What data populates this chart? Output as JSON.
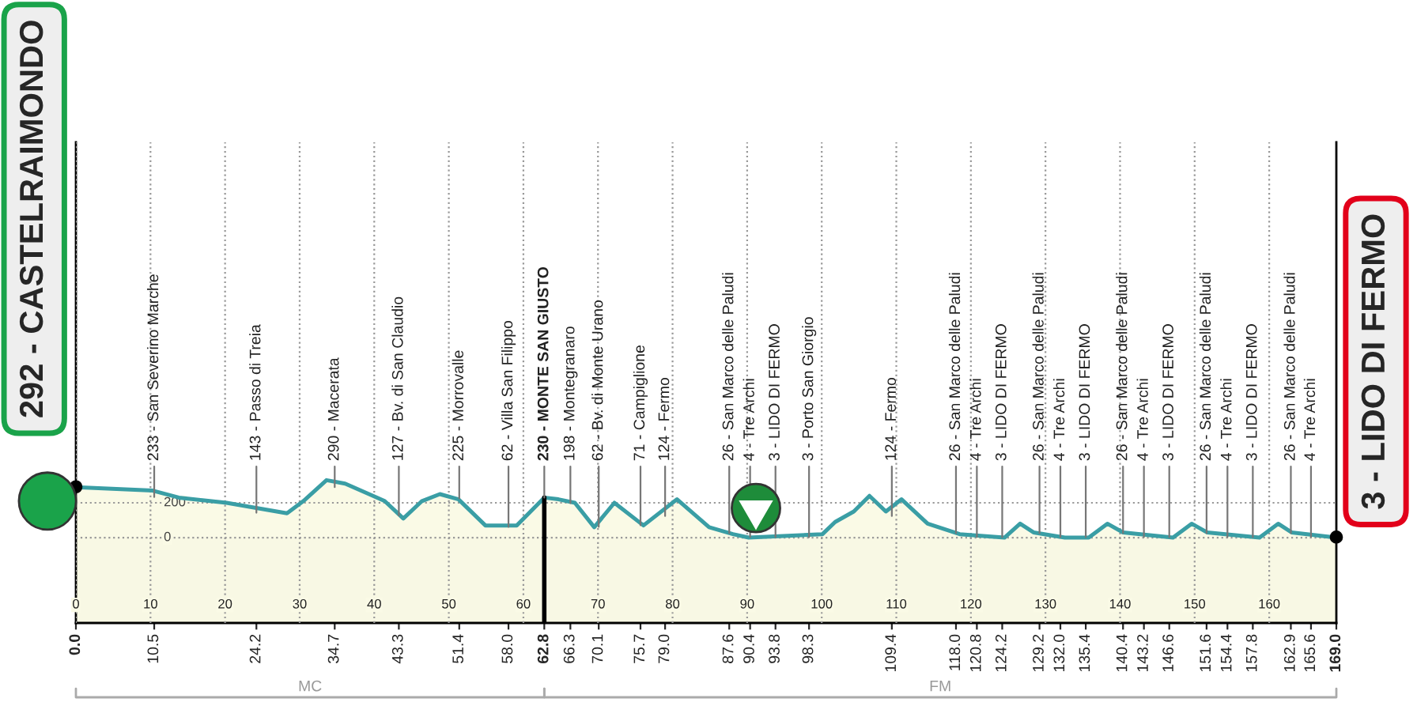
{
  "chart_data": {
    "type": "area",
    "series": [
      {
        "color": "#3a9ea5",
        "x": [
          0,
          10.3,
          13.8,
          20.2,
          28.3,
          30.5,
          33.6,
          36.1,
          39.3,
          41.4,
          43.9,
          46.4,
          48.8,
          51.3,
          54.9,
          59.1,
          62.8,
          64.7,
          66.9,
          69.5,
          72.2,
          76.1,
          80.6,
          84.9,
          88.1,
          90.2,
          100.1,
          101.8,
          104.3,
          106.4,
          108.6,
          110.7,
          114.2,
          118.5,
          124.5,
          126.6,
          128.4,
          132.6,
          135.8,
          138.3,
          140.4,
          147.1,
          149.6,
          151.7,
          158.7,
          161.2,
          163.0,
          169
        ],
        "values": [
          290,
          270,
          230,
          200,
          140,
          210,
          330,
          310,
          250,
          210,
          110,
          210,
          250,
          220,
          70,
          70,
          230,
          220,
          200,
          60,
          200,
          70,
          220,
          60,
          20,
          0,
          20,
          90,
          150,
          240,
          150,
          220,
          80,
          20,
          0,
          80,
          30,
          0,
          0,
          80,
          30,
          0,
          80,
          30,
          0,
          80,
          30,
          0
        ]
      }
    ],
    "xlim": [
      0,
      169
    ],
    "xticks": [
      0,
      10,
      20,
      30,
      40,
      50,
      60,
      70,
      80,
      90,
      100,
      110,
      120,
      130,
      140,
      150,
      160
    ],
    "ylim": [
      -490,
      2270
    ],
    "yticks": [
      0,
      200
    ],
    "x2lim": [
      0,
      169
    ],
    "x2ticks": [
      {
        "value": 0,
        "label": "0.0"
      },
      10.5,
      24.2,
      34.7,
      43.3,
      51.4,
      {
        "value": 58,
        "label": "58.0"
      },
      62.8,
      66.3,
      70.1,
      75.7,
      {
        "value": 79,
        "label": "79.0"
      },
      87.6,
      90.4,
      93.8,
      98.3,
      109.4,
      {
        "value": 118,
        "label": "118.0"
      },
      120.8,
      124.2,
      129.2,
      {
        "value": 132,
        "label": "132.0"
      },
      135.4,
      140.4,
      143.2,
      146.6,
      151.6,
      154.4,
      157.8,
      162.9,
      165.6,
      {
        "value": 169,
        "label": "169.0"
      }
    ],
    "grid": true,
    "ref_lines": [
      {
        "axis": "x",
        "value": 62.8,
        "color": "#000000"
      }
    ],
    "annotations": [
      "MC",
      "FM",
      {
        "text": "292 - CASTELRAIMONDO",
        "x": 0,
        "y": 292
      },
      {
        "text": "3 - LIDO DI FERMO",
        "x": 169,
        "y": 3
      },
      {
        "text": "233 - San Severino Marche",
        "x": 10.5,
        "y": 233
      },
      {
        "text": "143 - Passo di Treia",
        "x": 24.2,
        "y": 143
      },
      {
        "text": "290 - Macerata",
        "x": 34.7,
        "y": 290
      },
      {
        "text": "127 - Bv. di San Claudio",
        "x": 43.3,
        "y": 127
      },
      {
        "text": "225 - Morrovalle",
        "x": 51.4,
        "y": 225
      },
      {
        "text": "62 - Villa San Filippo",
        "x": 58,
        "y": 62
      },
      {
        "text": "230 - MONTE SAN GIUSTO",
        "x": 62.8,
        "y": 230
      },
      {
        "text": "198 - Montegranaro",
        "x": 66.3,
        "y": 198
      },
      {
        "text": "62 - Bv. di Monte Urano",
        "x": 70.1,
        "y": 62
      },
      {
        "text": "71 - Campiglione",
        "x": 75.7,
        "y": 71
      },
      {
        "text": "124 - Fermo",
        "x": 79,
        "y": 124
      },
      {
        "text": "26 - San Marco delle Paludi",
        "x": 87.6,
        "y": 26
      },
      {
        "text": "4 - Tre Archi",
        "x": 90.4,
        "y": 4
      },
      {
        "text": "3 - LIDO DI FERMO",
        "x": 93.8,
        "y": 3
      },
      {
        "text": "3 - Porto San Giorgio",
        "x": 98.3,
        "y": 3
      },
      {
        "text": "124 - Fermo",
        "x": 109.4,
        "y": 124
      },
      {
        "text": "26 - San Marco delle Paludi",
        "x": 118,
        "y": 26
      },
      {
        "text": "4 - Tre Archi",
        "x": 120.8,
        "y": 4
      },
      {
        "text": "3 - LIDO DI FERMO",
        "x": 124.2,
        "y": 3
      },
      {
        "text": "26 - San Marco delle Paludi",
        "x": 129.2,
        "y": 26
      },
      {
        "text": "4 - Tre Archi",
        "x": 132,
        "y": 4
      },
      {
        "text": "3 - LIDO DI FERMO",
        "x": 135.4,
        "y": 3
      },
      {
        "text": "26 - San Marco delle Paludi",
        "x": 140.4,
        "y": 26
      },
      {
        "text": "4 - Tre Archi",
        "x": 143.2,
        "y": 4
      },
      {
        "text": "3 - LIDO DI FERMO",
        "x": 146.6,
        "y": 3
      },
      {
        "text": "26 - San Marco delle Paludi",
        "x": 151.6,
        "y": 26
      },
      {
        "text": "4 - Tre Archi",
        "x": 154.4,
        "y": 4
      },
      {
        "text": "3 - LIDO DI FERMO",
        "x": 157.8,
        "y": 3
      },
      {
        "text": "26 - San Marco delle Paludi",
        "x": 162.9,
        "y": 26
      },
      {
        "text": "4 - Tre Archi",
        "x": 165.6,
        "y": 4
      }
    ]
  }
}
